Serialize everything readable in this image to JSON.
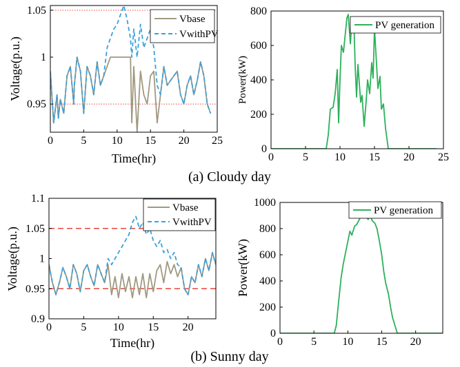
{
  "captions": {
    "cloudy": "(a) Cloudy day",
    "sunny": "(b) Sunny day"
  },
  "colors": {
    "vbase": "#a09880",
    "vwithpv": "#3aa0dc",
    "pv": "#2cb05a",
    "ref": "#e8463a"
  },
  "chart_data": [
    {
      "id": "cloudy-voltage",
      "type": "line",
      "xlabel": "Time(hr)",
      "ylabel": "Voltage(p.u.)",
      "xlim": [
        0,
        25
      ],
      "ylim": [
        0.92,
        1.055
      ],
      "xticks": [
        0,
        5,
        10,
        15,
        20,
        25
      ],
      "yticks": [
        0.95,
        1,
        1.05
      ],
      "yticklabels": [
        "0.95",
        "1",
        "1.05"
      ],
      "reference_lines": [
        1.05,
        0.95
      ],
      "reference_style": "dotted",
      "legend": "top-right",
      "series": [
        {
          "name": "Vbase",
          "color": "#a09880",
          "dash": "solid",
          "x": [
            0,
            0.4,
            0.5,
            1,
            1.2,
            1.5,
            2,
            2.5,
            3,
            3.5,
            3.6,
            4,
            4.5,
            5,
            5.5,
            6,
            6.5,
            7,
            7.5,
            8,
            8.5,
            9,
            9.5,
            10,
            10.5,
            11,
            11.5,
            12,
            12.2,
            12.5,
            13,
            13.5,
            14,
            14.5,
            15,
            15.5,
            16,
            16.5,
            17,
            17.5,
            18,
            18.5,
            19,
            19.5,
            20,
            20.5,
            21,
            21.5,
            22,
            22.5,
            23,
            23.5,
            24
          ],
          "y": [
            0.985,
            0.94,
            0.93,
            0.96,
            0.935,
            0.955,
            0.94,
            0.98,
            0.99,
            0.95,
            0.97,
            1.0,
            0.985,
            0.94,
            0.99,
            0.98,
            0.96,
            0.995,
            0.97,
            0.98,
            0.99,
            1.0,
            1.0,
            1.0,
            1.0,
            1.0,
            1.0,
            1.0,
            0.93,
            0.99,
            0.92,
            0.985,
            0.96,
            0.95,
            0.98,
            0.985,
            0.93,
            0.96,
            0.99,
            0.97,
            0.975,
            0.98,
            0.985,
            0.96,
            0.95,
            0.97,
            0.98,
            0.96,
            0.975,
            0.995,
            0.98,
            0.95,
            0.94
          ]
        },
        {
          "name": "VwithPV",
          "color": "#3aa0dc",
          "dash": "dashed",
          "x": [
            0,
            0.4,
            0.5,
            1,
            1.2,
            1.5,
            2,
            2.5,
            3,
            3.5,
            3.6,
            4,
            4.5,
            5,
            5.5,
            6,
            6.5,
            7,
            7.5,
            8,
            8.5,
            9,
            9.5,
            10,
            10.5,
            11,
            11.5,
            12,
            12.2,
            12.5,
            13,
            13.5,
            14,
            14.5,
            15,
            15.5,
            16,
            16.5,
            17,
            17.5,
            18,
            18.5,
            19,
            19.5,
            20,
            20.5,
            21,
            21.5,
            22,
            22.5,
            23,
            23.5,
            24
          ],
          "y": [
            0.985,
            0.94,
            0.93,
            0.96,
            0.935,
            0.955,
            0.94,
            0.98,
            0.99,
            0.95,
            0.97,
            1.0,
            0.985,
            0.94,
            0.99,
            0.98,
            0.96,
            0.995,
            0.97,
            0.98,
            1.01,
            1.02,
            1.03,
            1.035,
            1.045,
            1.055,
            1.04,
            1.02,
            1.0,
            1.03,
            1.0,
            1.035,
            1.01,
            1.02,
            1.03,
            1.01,
            0.97,
            0.96,
            0.99,
            0.97,
            0.975,
            0.98,
            0.985,
            0.96,
            0.95,
            0.97,
            0.98,
            0.96,
            0.975,
            0.995,
            0.98,
            0.95,
            0.94
          ]
        }
      ]
    },
    {
      "id": "cloudy-pv",
      "type": "line",
      "xlabel": "",
      "ylabel": "Power(kW)",
      "xlim": [
        0,
        25
      ],
      "ylim": [
        0,
        800
      ],
      "xticks": [
        0,
        5,
        10,
        15,
        20,
        25
      ],
      "yticks": [
        0,
        200,
        400,
        600,
        800
      ],
      "legend": "top-right",
      "series": [
        {
          "name": "PV generation",
          "color": "#2cb05a",
          "dash": "solid",
          "x": [
            0,
            8,
            8.3,
            8.6,
            9,
            9.3,
            9.6,
            9.8,
            10,
            10.2,
            10.5,
            10.8,
            11,
            11.2,
            11.5,
            11.7,
            12,
            12.2,
            12.4,
            12.6,
            12.8,
            13,
            13.2,
            13.5,
            13.8,
            14,
            14.3,
            14.6,
            14.8,
            15,
            15.2,
            15.5,
            15.8,
            16,
            16.3,
            16.6,
            17,
            24
          ],
          "y": [
            0,
            0,
            80,
            230,
            240,
            320,
            460,
            150,
            400,
            600,
            560,
            680,
            760,
            780,
            610,
            720,
            760,
            480,
            300,
            490,
            380,
            270,
            310,
            130,
            280,
            400,
            320,
            500,
            410,
            700,
            560,
            350,
            420,
            230,
            260,
            120,
            0,
            0
          ]
        }
      ]
    },
    {
      "id": "sunny-voltage",
      "type": "line",
      "xlabel": "Time(hr)",
      "ylabel": "Voltage(p.u.)",
      "xlim": [
        0,
        24
      ],
      "ylim": [
        0.9,
        1.1
      ],
      "xticks": [
        0,
        5,
        10,
        15,
        20
      ],
      "yticks": [
        0.9,
        0.95,
        1,
        1.05,
        1.1
      ],
      "yticklabels": [
        "0.9",
        "0.95",
        "1",
        "1.05",
        "1.1"
      ],
      "reference_lines": [
        1.05,
        0.95
      ],
      "reference_style": "dashed",
      "legend": "top-right",
      "series": [
        {
          "name": "Vbase",
          "color": "#a09880",
          "dash": "solid",
          "x": [
            0,
            0.5,
            1,
            1.5,
            2,
            2.5,
            3,
            3.5,
            4,
            4.5,
            5,
            5.5,
            6,
            6.5,
            7,
            7.5,
            8,
            8.5,
            9,
            9.5,
            10,
            10.5,
            11,
            11.5,
            12,
            12.5,
            13,
            13.5,
            14,
            14.5,
            15,
            15.5,
            16,
            16.5,
            17,
            17.5,
            18,
            18.5,
            19,
            19.5,
            20,
            20.5,
            21,
            21.5,
            22,
            22.5,
            23,
            23.5,
            24
          ],
          "y": [
            0.99,
            0.96,
            0.94,
            0.96,
            0.985,
            0.97,
            0.95,
            0.99,
            0.975,
            0.945,
            0.98,
            0.99,
            0.97,
            0.955,
            0.99,
            0.975,
            0.96,
            0.99,
            0.94,
            0.97,
            0.935,
            0.975,
            0.945,
            0.97,
            0.935,
            0.97,
            0.94,
            0.975,
            0.935,
            0.975,
            0.945,
            0.98,
            0.99,
            0.96,
            0.995,
            0.975,
            0.99,
            0.97,
            0.985,
            0.95,
            0.94,
            0.97,
            0.96,
            0.99,
            0.97,
            1.0,
            0.98,
            1.01,
            0.99
          ]
        },
        {
          "name": "VwithPV",
          "color": "#3aa0dc",
          "dash": "dashed",
          "x": [
            0,
            0.5,
            1,
            1.5,
            2,
            2.5,
            3,
            3.5,
            4,
            4.5,
            5,
            5.5,
            6,
            6.5,
            7,
            7.5,
            8,
            8.5,
            9,
            9.5,
            10,
            10.5,
            11,
            11.5,
            12,
            12.5,
            13,
            13.5,
            14,
            14.5,
            15,
            15.5,
            16,
            16.5,
            17,
            17.5,
            18,
            18.5,
            19,
            19.5,
            20,
            20.5,
            21,
            21.5,
            22,
            22.5,
            23,
            23.5,
            24
          ],
          "y": [
            0.99,
            0.96,
            0.94,
            0.96,
            0.985,
            0.97,
            0.95,
            0.99,
            0.975,
            0.945,
            0.98,
            0.99,
            0.97,
            0.955,
            0.99,
            0.975,
            0.96,
            1.0,
            0.99,
            1.0,
            1.01,
            1.02,
            1.03,
            1.04,
            1.06,
            1.07,
            1.05,
            1.06,
            1.04,
            1.05,
            1.03,
            1.02,
            1.03,
            1.01,
            1.015,
            1.0,
            1.01,
            0.99,
            0.985,
            0.95,
            0.94,
            0.97,
            0.96,
            0.99,
            0.97,
            1.0,
            0.98,
            1.01,
            0.99
          ]
        }
      ]
    },
    {
      "id": "sunny-pv",
      "type": "line",
      "xlabel": "",
      "ylabel": "Power(kW)",
      "xlim": [
        0,
        24
      ],
      "ylim": [
        0,
        1000
      ],
      "xticks": [
        0,
        5,
        10,
        15,
        20
      ],
      "yticks": [
        0,
        200,
        400,
        600,
        800,
        1000
      ],
      "legend": "top-right",
      "series": [
        {
          "name": "PV generation",
          "color": "#2cb05a",
          "dash": "solid",
          "x": [
            0,
            8,
            8.3,
            8.6,
            9,
            9.3,
            9.6,
            10,
            10.3,
            10.6,
            11,
            11.3,
            11.6,
            12,
            12.3,
            12.6,
            13,
            13.3,
            13.6,
            14,
            14.3,
            14.6,
            15,
            15.3,
            15.6,
            16,
            16.3,
            16.6,
            17,
            17.3,
            24
          ],
          "y": [
            0,
            0,
            60,
            220,
            420,
            520,
            600,
            700,
            780,
            750,
            820,
            830,
            860,
            900,
            880,
            900,
            870,
            900,
            860,
            840,
            800,
            720,
            600,
            470,
            380,
            300,
            200,
            120,
            50,
            0,
            0
          ]
        }
      ]
    }
  ]
}
